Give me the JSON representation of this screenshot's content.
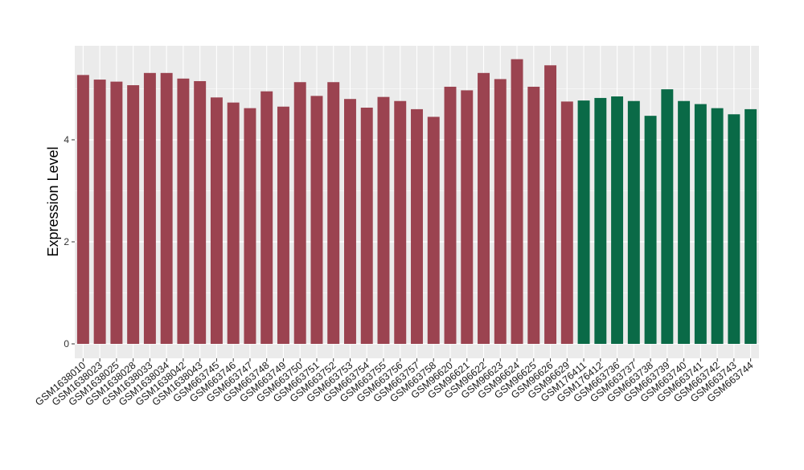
{
  "chart_data": {
    "type": "bar",
    "title": "",
    "xlabel": "",
    "ylabel": "Expression Level",
    "ylim": [
      0,
      5.8
    ],
    "yticks": [
      0,
      2,
      4
    ],
    "ytick_labels": [
      "0",
      "2",
      "4"
    ],
    "grid": true,
    "colors": {
      "group1": "#9b4350",
      "group2": "#0a6a47",
      "panel": "#ebebeb",
      "grid": "#ffffff"
    },
    "categories": [
      "GSM1638010",
      "GSM1638023",
      "GSM1638025",
      "GSM1638028",
      "GSM1638033",
      "GSM1638034",
      "GSM1638042",
      "GSM1638043",
      "GSM663745",
      "GSM663746",
      "GSM663747",
      "GSM663748",
      "GSM663749",
      "GSM663750",
      "GSM663751",
      "GSM663752",
      "GSM663753",
      "GSM663754",
      "GSM663755",
      "GSM663756",
      "GSM663757",
      "GSM663758",
      "GSM96620",
      "GSM96621",
      "GSM96622",
      "GSM96623",
      "GSM96624",
      "GSM96625",
      "GSM96626",
      "GSM96629",
      "GSM176411",
      "GSM176412",
      "GSM663736",
      "GSM663737",
      "GSM663738",
      "GSM663739",
      "GSM663740",
      "GSM663741",
      "GSM663742",
      "GSM663743",
      "GSM663744"
    ],
    "values": [
      5.27,
      5.18,
      5.14,
      5.07,
      5.31,
      5.31,
      5.2,
      5.15,
      4.83,
      4.73,
      4.62,
      4.95,
      4.65,
      5.13,
      4.86,
      5.13,
      4.8,
      4.63,
      4.84,
      4.76,
      4.6,
      4.45,
      5.04,
      4.97,
      5.31,
      5.19,
      5.58,
      5.04,
      5.46,
      4.75,
      4.77,
      4.82,
      4.85,
      4.76,
      4.47,
      4.99,
      4.76,
      4.7,
      4.62,
      4.5,
      4.6
    ],
    "groups": [
      "group1",
      "group1",
      "group1",
      "group1",
      "group1",
      "group1",
      "group1",
      "group1",
      "group1",
      "group1",
      "group1",
      "group1",
      "group1",
      "group1",
      "group1",
      "group1",
      "group1",
      "group1",
      "group1",
      "group1",
      "group1",
      "group1",
      "group1",
      "group1",
      "group1",
      "group1",
      "group1",
      "group1",
      "group1",
      "group1",
      "group2",
      "group2",
      "group2",
      "group2",
      "group2",
      "group2",
      "group2",
      "group2",
      "group2",
      "group2",
      "group2"
    ]
  }
}
